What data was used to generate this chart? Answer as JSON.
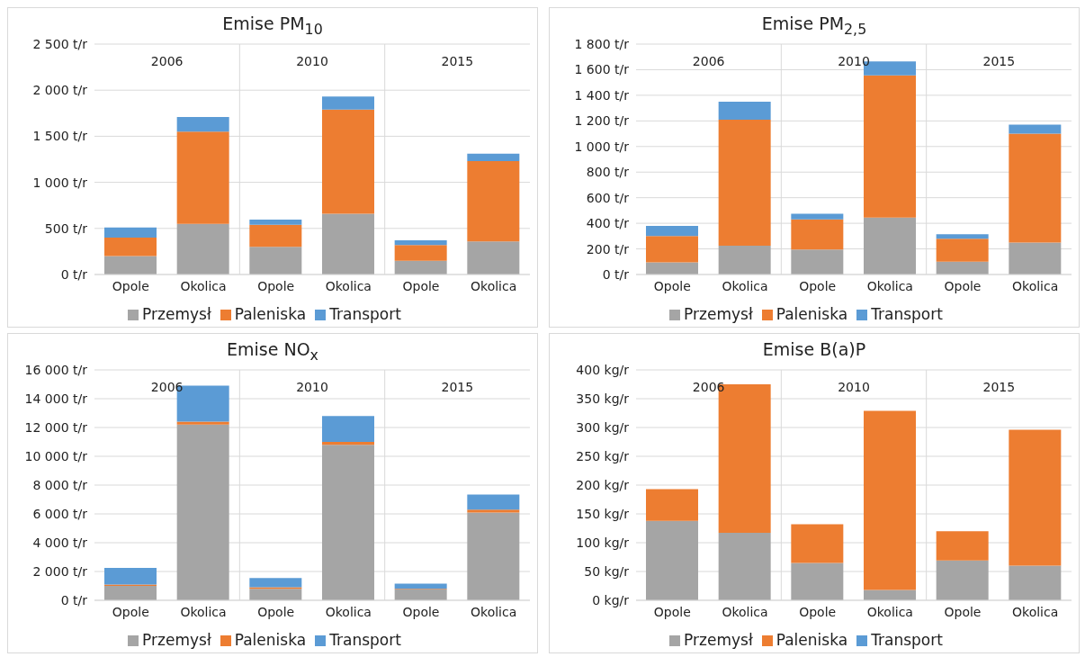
{
  "chart_data": [
    {
      "type": "bar",
      "title": "Emise PM$_{10}$",
      "categories": [
        "Opole",
        "Okolica",
        "Opole",
        "Okolica",
        "Opole",
        "Okolica"
      ],
      "annotations": [
        "2006",
        "2010",
        "2015"
      ],
      "stacked": true,
      "grid": "y",
      "legend": "bottom",
      "ylim": [
        0,
        2500
      ],
      "yticks": [
        {
          "value": 0,
          "label": "0 t/r"
        },
        {
          "value": 500,
          "label": "500 t/r"
        },
        {
          "value": 1000,
          "label": "1 000 t/r"
        },
        {
          "value": 1500,
          "label": "1 500 t/r"
        },
        {
          "value": 2000,
          "label": "2 000 t/r"
        },
        {
          "value": 2500,
          "label": "2 500 t/r"
        }
      ],
      "series": [
        {
          "name": "Przemysł",
          "color": "#a5a5a5",
          "values": [
            200,
            550,
            300,
            660,
            150,
            360
          ]
        },
        {
          "name": "Paleniska",
          "color": "#ed7d31",
          "values": [
            200,
            1000,
            240,
            1130,
            170,
            870
          ]
        },
        {
          "name": "Transport",
          "color": "#5b9bd5",
          "values": [
            110,
            160,
            55,
            140,
            50,
            80
          ]
        }
      ]
    },
    {
      "type": "bar",
      "title": "Emise PM$_{2,5}$",
      "categories": [
        "Opole",
        "Okolica",
        "Opole",
        "Okolica",
        "Opole",
        "Okolica"
      ],
      "annotations": [
        "2006",
        "2010",
        "2015"
      ],
      "stacked": true,
      "grid": "y",
      "legend": "bottom",
      "ylim": [
        0,
        1800
      ],
      "yticks": [
        {
          "value": 0,
          "label": "0 t/r"
        },
        {
          "value": 200,
          "label": "200 t/r"
        },
        {
          "value": 400,
          "label": "400 t/r"
        },
        {
          "value": 600,
          "label": "600 t/r"
        },
        {
          "value": 800,
          "label": "800 t/r"
        },
        {
          "value": 1000,
          "label": "1 000 t/r"
        },
        {
          "value": 1200,
          "label": "1 200 t/r"
        },
        {
          "value": 1400,
          "label": "1 400 t/r"
        },
        {
          "value": 1600,
          "label": "1 600 t/r"
        },
        {
          "value": 1800,
          "label": "1 800 t/r"
        }
      ],
      "series": [
        {
          "name": "Przemysł",
          "color": "#a5a5a5",
          "values": [
            95,
            225,
            195,
            445,
            100,
            250
          ]
        },
        {
          "name": "Paleniska",
          "color": "#ed7d31",
          "values": [
            205,
            985,
            235,
            1110,
            180,
            850
          ]
        },
        {
          "name": "Transport",
          "color": "#5b9bd5",
          "values": [
            80,
            140,
            45,
            110,
            35,
            70
          ]
        }
      ]
    },
    {
      "type": "bar",
      "title": "Emise NO$_{x}$",
      "categories": [
        "Opole",
        "Okolica",
        "Opole",
        "Okolica",
        "Opole",
        "Okolica"
      ],
      "annotations": [
        "2006",
        "2010",
        "2015"
      ],
      "stacked": true,
      "grid": "y",
      "legend": "bottom",
      "ylim": [
        0,
        16000
      ],
      "yticks": [
        {
          "value": 0,
          "label": "0 t/r"
        },
        {
          "value": 2000,
          "label": "2 000 t/r"
        },
        {
          "value": 4000,
          "label": "4 000 t/r"
        },
        {
          "value": 6000,
          "label": "6 000 t/r"
        },
        {
          "value": 8000,
          "label": "8 000 t/r"
        },
        {
          "value": 10000,
          "label": "10 000 t/r"
        },
        {
          "value": 12000,
          "label": "12 000 t/r"
        },
        {
          "value": 14000,
          "label": "14 000 t/r"
        },
        {
          "value": 16000,
          "label": "16 000 t/r"
        }
      ],
      "series": [
        {
          "name": "Przemysł",
          "color": "#a5a5a5",
          "values": [
            1000,
            12200,
            800,
            10800,
            750,
            6100
          ]
        },
        {
          "name": "Paleniska",
          "color": "#ed7d31",
          "values": [
            100,
            200,
            100,
            200,
            50,
            200
          ]
        },
        {
          "name": "Transport",
          "color": "#5b9bd5",
          "values": [
            1150,
            2500,
            650,
            1800,
            350,
            1050
          ]
        }
      ]
    },
    {
      "type": "bar",
      "title": "Emise B(a)P",
      "categories": [
        "Opole",
        "Okolica",
        "Opole",
        "Okolica",
        "Opole",
        "Okolica"
      ],
      "annotations": [
        "2006",
        "2010",
        "2015"
      ],
      "stacked": true,
      "grid": "y",
      "legend": "bottom",
      "ylim": [
        0,
        400
      ],
      "yticks": [
        {
          "value": 0,
          "label": "0 kg/r"
        },
        {
          "value": 50,
          "label": "50 kg/r"
        },
        {
          "value": 100,
          "label": "100 kg/r"
        },
        {
          "value": 150,
          "label": "150 kg/r"
        },
        {
          "value": 200,
          "label": "200 kg/r"
        },
        {
          "value": 250,
          "label": "250 kg/r"
        },
        {
          "value": 300,
          "label": "300 kg/r"
        },
        {
          "value": 350,
          "label": "350 kg/r"
        },
        {
          "value": 400,
          "label": "400 kg/r"
        }
      ],
      "series": [
        {
          "name": "Przemysł",
          "color": "#a5a5a5",
          "values": [
            138,
            117,
            65,
            18,
            69,
            60
          ]
        },
        {
          "name": "Paleniska",
          "color": "#ed7d31",
          "values": [
            55,
            258,
            67,
            311,
            51,
            236
          ]
        },
        {
          "name": "Transport",
          "color": "#5b9bd5",
          "values": [
            null,
            null,
            null,
            null,
            null,
            null
          ]
        }
      ]
    }
  ]
}
